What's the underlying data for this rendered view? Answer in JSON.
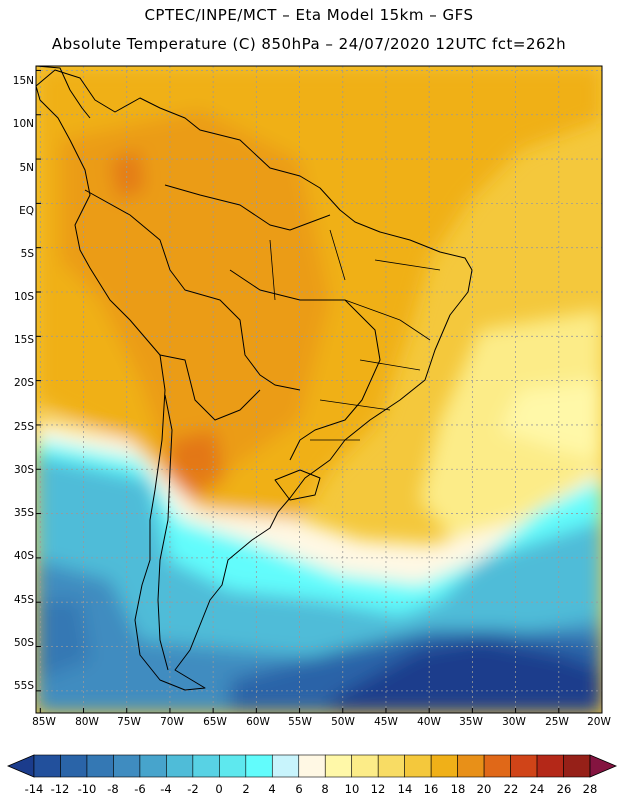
{
  "header": {
    "line1": "CPTEC/INPE/MCT –  Eta Model 15km – GFS",
    "line2": "Absolute Temperature (C) 850hPa – 24/07/2020 12UTC fct=262h"
  },
  "map": {
    "region": "South America",
    "lat_labels": [
      "15N",
      "10N",
      "5N",
      "EQ",
      "5S",
      "10S",
      "15S",
      "20S",
      "25S",
      "30S",
      "35S",
      "40S",
      "45S",
      "50S",
      "55S"
    ],
    "lon_labels": [
      "85W",
      "80W",
      "75W",
      "70W",
      "65W",
      "60W",
      "55W",
      "50W",
      "45W",
      "40W",
      "35W",
      "30W",
      "25W",
      "20W"
    ],
    "lat_range": [
      15.5,
      -57.5
    ],
    "lon_range": [
      -85.5,
      -20
    ]
  },
  "colorbar": {
    "labels": [
      "-14",
      "-12",
      "-10",
      "-8",
      "-6",
      "-4",
      "-2",
      "0",
      "2",
      "4",
      "6",
      "8",
      "10",
      "12",
      "14",
      "16",
      "18",
      "20",
      "22",
      "24",
      "26",
      "28"
    ],
    "colors": [
      "#1b3c8c",
      "#22509c",
      "#2a64a8",
      "#3478b4",
      "#3f8cc0",
      "#47a4cc",
      "#4fbcd8",
      "#58d2e4",
      "#5ee8ee",
      "#62fcfc",
      "#c8f4fc",
      "#fff8e4",
      "#fff8a8",
      "#fcec88",
      "#f8dc64",
      "#f4c83c",
      "#f0b018",
      "#e89018",
      "#e06818",
      "#d04418",
      "#b42818",
      "#962018",
      "#781818",
      "#841440"
    ]
  }
}
